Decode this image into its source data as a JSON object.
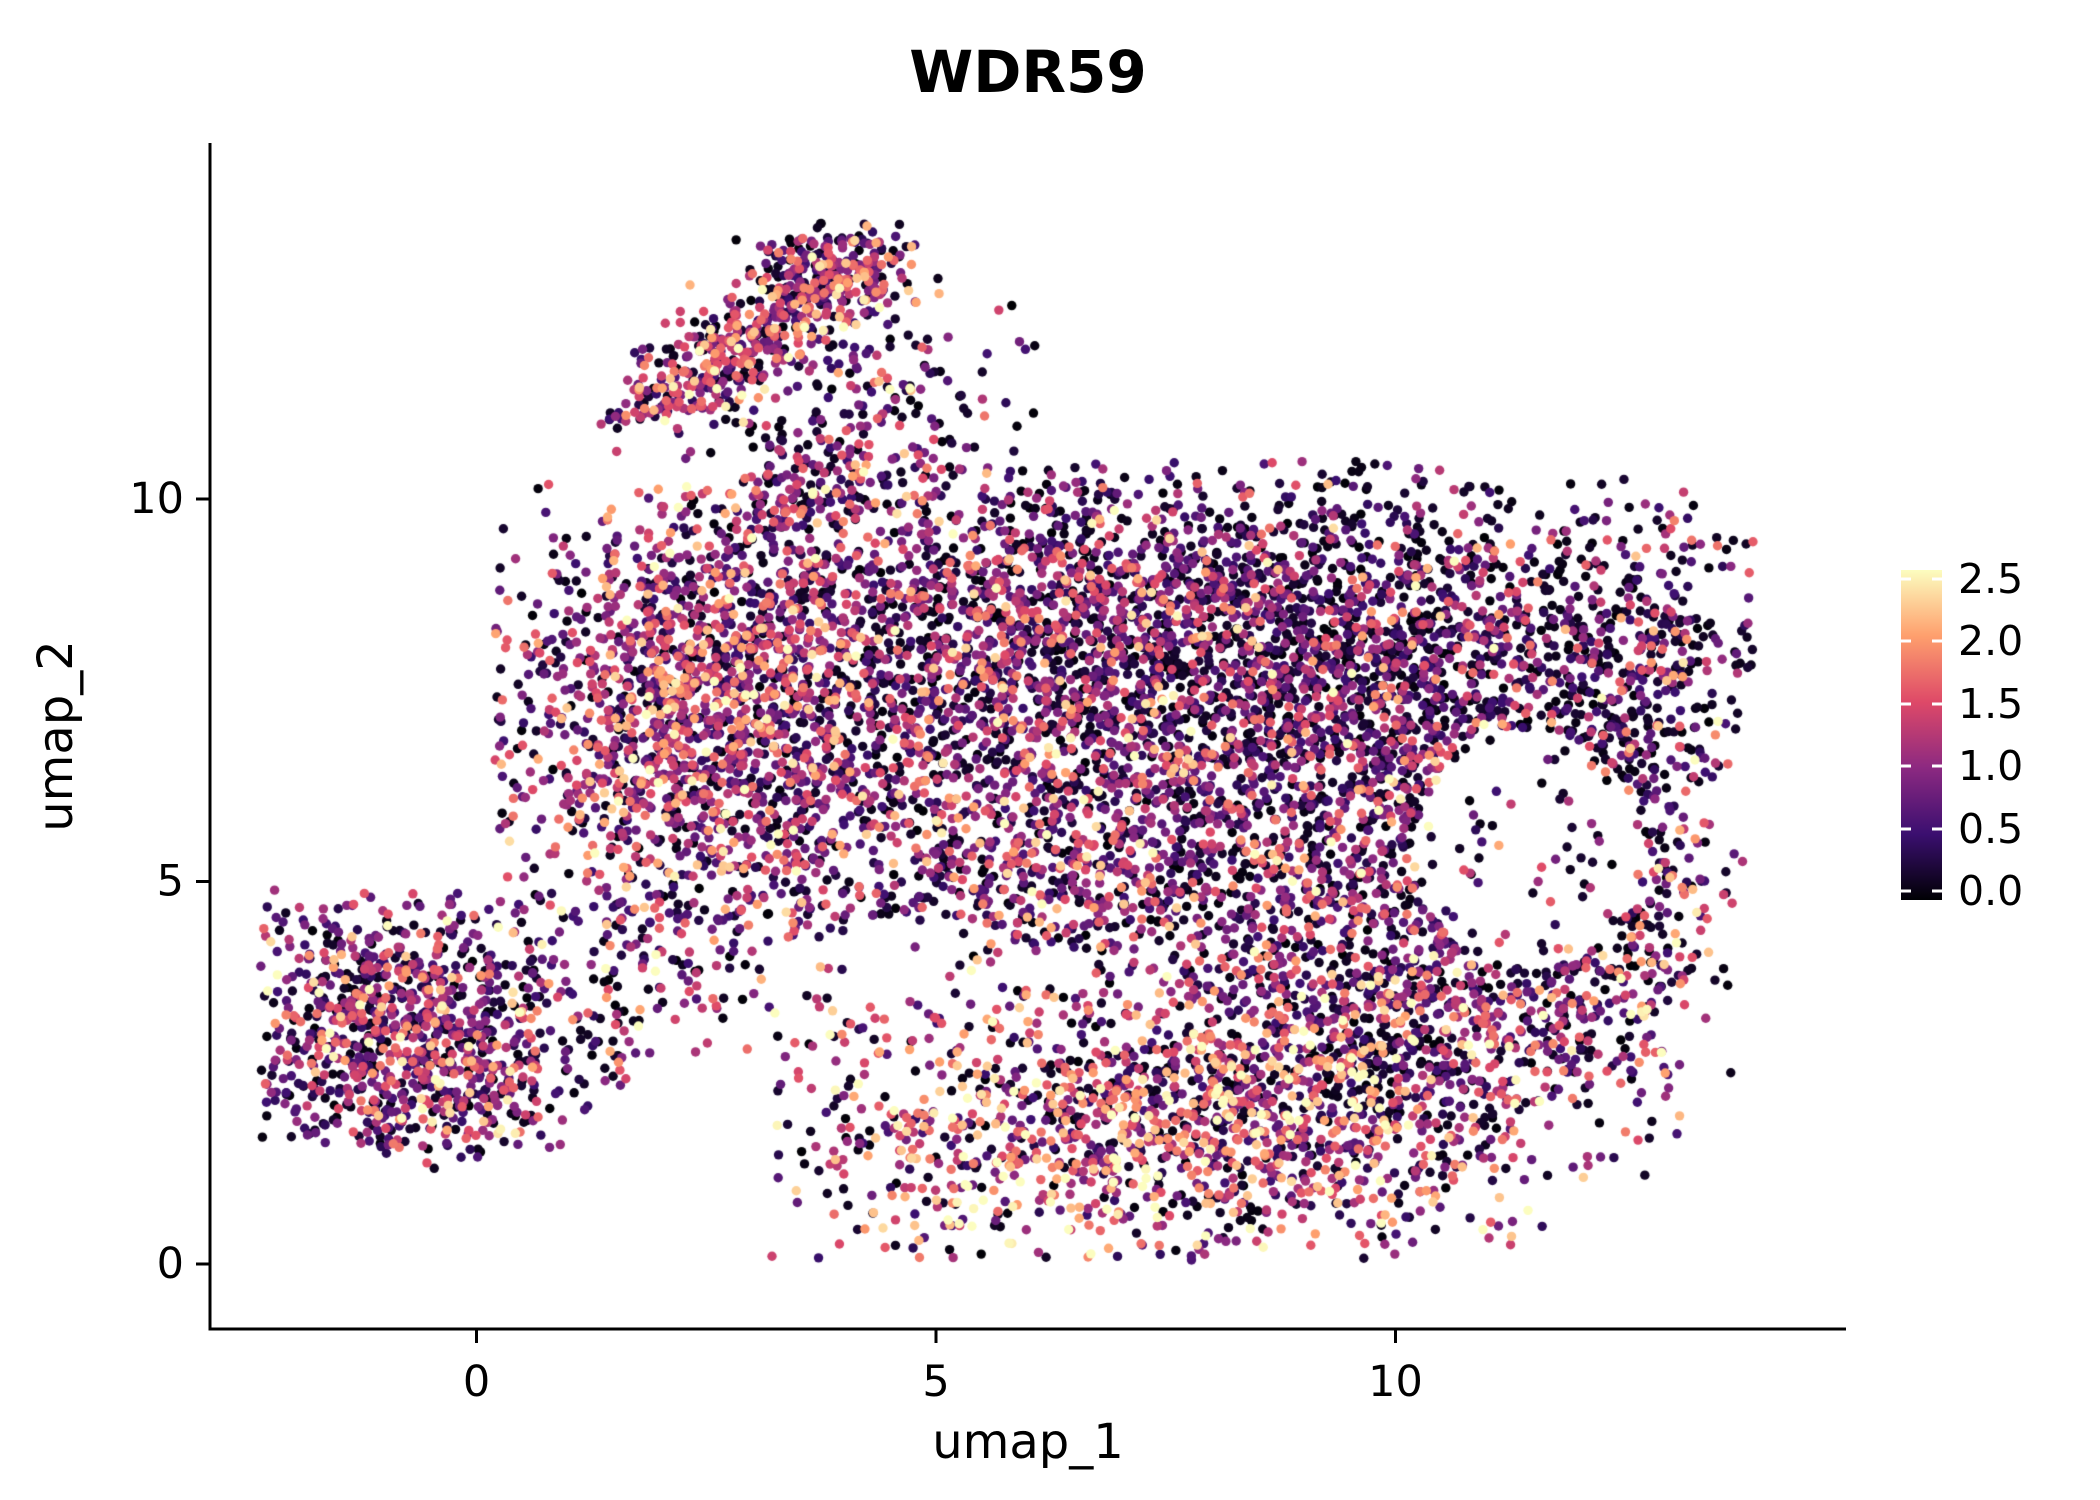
{
  "title": "WDR59",
  "axes": {
    "x": {
      "label": "umap_1",
      "tick_labels": [
        "0",
        "5",
        "10"
      ]
    },
    "y": {
      "label": "umap_2",
      "tick_labels": [
        "0",
        "5",
        "10"
      ]
    }
  },
  "legend": {
    "tick_labels": [
      "2.5",
      "2.0",
      "1.5",
      "1.0",
      "0.5",
      "0.0"
    ]
  },
  "colormap": {
    "name": "magma",
    "stops": [
      {
        "v": 0.0,
        "color": "#000004"
      },
      {
        "v": 0.5,
        "color": "#3b0f70"
      },
      {
        "v": 1.0,
        "color": "#8c2981"
      },
      {
        "v": 1.5,
        "color": "#de4968"
      },
      {
        "v": 2.0,
        "color": "#fe9f6d"
      },
      {
        "v": 2.5,
        "color": "#fcfdbf"
      }
    ]
  },
  "chart_data": {
    "type": "scatter",
    "title": "WDR59",
    "xlabel": "umap_1",
    "ylabel": "umap_2",
    "xlim": [
      -2.9,
      14.9
    ],
    "ylim": [
      -0.85,
      14.65
    ],
    "x_ticks": [
      0,
      5,
      10
    ],
    "y_ticks": [
      0,
      5,
      10
    ],
    "color_values": [
      0.0,
      0.5,
      1.0,
      1.5,
      2.0,
      2.5
    ],
    "color_range": [
      0.0,
      2.5
    ],
    "legend_position": "right",
    "grid": false,
    "point_radius_px": 4.7,
    "seed": 20240601,
    "description": "UMAP embedding of single cells colored by WDR59 expression (magma scale, 0 = black to 2.5 = cream). One large irregular main mass upper-right, a diagonal arm cluster top-left, and a separate small round cluster bottom-left; sparse hollow inside main mass on the right.",
    "holes": [
      {
        "cx": 11.45,
        "cy": 5.4,
        "rx": 1.25,
        "ry": 1.55,
        "keep": 0.13
      },
      {
        "cx": 4.7,
        "cy": 3.9,
        "rx": 1.35,
        "ry": 0.65,
        "keep": 0.3
      },
      {
        "cx": 2.2,
        "cy": 10.6,
        "rx": 0.8,
        "ry": 0.5,
        "keep": 0.2
      }
    ],
    "clusters": [
      {
        "name": "upper-arm",
        "cx": 2.9,
        "cy": 12.0,
        "sx": 1.05,
        "sy": 0.33,
        "rot": 42,
        "count": 500,
        "clip": [
          1.3,
          4.8,
          10.6,
          13.6
        ],
        "expr_probs": [
          0.22,
          0.18,
          0.2,
          0.22,
          0.13,
          0.05
        ]
      },
      {
        "name": "arm-knob",
        "cx": 3.9,
        "cy": 13.0,
        "sx": 0.5,
        "sy": 0.3,
        "rot": 15,
        "count": 170,
        "clip": [
          2.8,
          4.8,
          12.2,
          13.6
        ],
        "expr_probs": [
          0.3,
          0.25,
          0.22,
          0.15,
          0.06,
          0.02
        ]
      },
      {
        "name": "arm-trail",
        "cx": 4.4,
        "cy": 11.4,
        "sx": 0.75,
        "sy": 0.85,
        "rot": 0,
        "count": 150,
        "clip": [
          2.5,
          6.2,
          9.9,
          13.0
        ],
        "expr_probs": [
          0.38,
          0.24,
          0.19,
          0.12,
          0.05,
          0.02
        ]
      },
      {
        "name": "arm-neck",
        "cx": 3.6,
        "cy": 10.2,
        "sx": 0.75,
        "sy": 0.5,
        "rot": 20,
        "count": 170,
        "clip": [
          2.2,
          5.2,
          9.3,
          11.2
        ],
        "expr_probs": [
          0.3,
          0.25,
          0.21,
          0.15,
          0.06,
          0.03
        ]
      },
      {
        "name": "left-lobe",
        "cx": 2.4,
        "cy": 7.4,
        "sx": 1.15,
        "sy": 1.4,
        "rot": 0,
        "count": 1550,
        "clip": [
          0.2,
          5.5,
          4.3,
          10.2
        ],
        "expr_probs": [
          0.2,
          0.22,
          0.24,
          0.2,
          0.1,
          0.04
        ]
      },
      {
        "name": "upper-middle",
        "cx": 5.6,
        "cy": 8.4,
        "sx": 1.55,
        "sy": 1.05,
        "rot": 0,
        "count": 1150,
        "clip": [
          2.5,
          9.0,
          5.8,
          10.4
        ],
        "expr_probs": [
          0.31,
          0.26,
          0.22,
          0.14,
          0.05,
          0.02
        ]
      },
      {
        "name": "upper-right",
        "cx": 9.3,
        "cy": 8.1,
        "sx": 1.9,
        "sy": 1.2,
        "rot": -8,
        "count": 1950,
        "clip": [
          5.5,
          13.2,
          5.2,
          10.5
        ],
        "expr_probs": [
          0.44,
          0.27,
          0.16,
          0.09,
          0.03,
          0.01
        ]
      },
      {
        "name": "right-edge",
        "cx": 12.7,
        "cy": 7.3,
        "sx": 0.8,
        "sy": 1.5,
        "rot": -15,
        "count": 470,
        "clip": [
          10.8,
          13.9,
          4.5,
          10.0
        ],
        "expr_probs": [
          0.44,
          0.26,
          0.16,
          0.09,
          0.04,
          0.01
        ]
      },
      {
        "name": "mid-band",
        "cx": 6.4,
        "cy": 5.6,
        "sx": 2.2,
        "sy": 1.35,
        "rot": 0,
        "count": 1550,
        "clip": [
          1.5,
          11.5,
          3.2,
          8.5
        ],
        "expr_probs": [
          0.27,
          0.24,
          0.22,
          0.16,
          0.08,
          0.03
        ]
      },
      {
        "name": "mid-right",
        "cx": 9.8,
        "cy": 5.0,
        "sx": 1.5,
        "sy": 1.25,
        "rot": 0,
        "count": 720,
        "clip": [
          6.5,
          13.0,
          2.5,
          7.5
        ],
        "expr_probs": [
          0.38,
          0.26,
          0.18,
          0.11,
          0.05,
          0.02
        ]
      },
      {
        "name": "bottom-band",
        "cx": 7.4,
        "cy": 1.8,
        "sx": 2.05,
        "sy": 0.95,
        "rot": 5,
        "count": 1350,
        "clip": [
          3.2,
          11.5,
          0.05,
          3.6
        ],
        "expr_probs": [
          0.21,
          0.16,
          0.18,
          0.2,
          0.16,
          0.09
        ]
      },
      {
        "name": "bottom-right",
        "cx": 10.4,
        "cy": 2.9,
        "sx": 1.25,
        "sy": 1.05,
        "rot": 25,
        "count": 620,
        "clip": [
          7.5,
          13.2,
          0.3,
          5.2
        ],
        "expr_probs": [
          0.28,
          0.22,
          0.2,
          0.16,
          0.1,
          0.04
        ]
      },
      {
        "name": "right-lower-edge",
        "cx": 12.4,
        "cy": 3.9,
        "sx": 0.7,
        "sy": 1.05,
        "rot": -20,
        "count": 270,
        "clip": [
          10.8,
          13.7,
          1.8,
          6.0
        ],
        "expr_probs": [
          0.32,
          0.21,
          0.18,
          0.14,
          0.1,
          0.05
        ]
      },
      {
        "name": "lower-left-cluster",
        "cx": -0.85,
        "cy": 3.05,
        "sx": 0.95,
        "sy": 0.95,
        "rot": 0,
        "count": 880,
        "clip": [
          -2.35,
          0.7,
          1.5,
          4.9
        ],
        "expr_probs": [
          0.26,
          0.26,
          0.22,
          0.16,
          0.07,
          0.03
        ]
      },
      {
        "name": "lower-left-tail",
        "cx": 0.35,
        "cy": 2.3,
        "sx": 0.75,
        "sy": 0.5,
        "rot": 30,
        "count": 130,
        "clip": [
          -1.0,
          2.2,
          1.2,
          3.6
        ],
        "expr_probs": [
          0.3,
          0.26,
          0.2,
          0.14,
          0.07,
          0.03
        ]
      },
      {
        "name": "left-bridge",
        "cx": 1.7,
        "cy": 3.9,
        "sx": 0.95,
        "sy": 0.75,
        "rot": 0,
        "count": 140,
        "clip": [
          0.3,
          3.5,
          2.6,
          5.2
        ],
        "expr_probs": [
          0.32,
          0.26,
          0.19,
          0.13,
          0.07,
          0.03
        ]
      }
    ]
  }
}
